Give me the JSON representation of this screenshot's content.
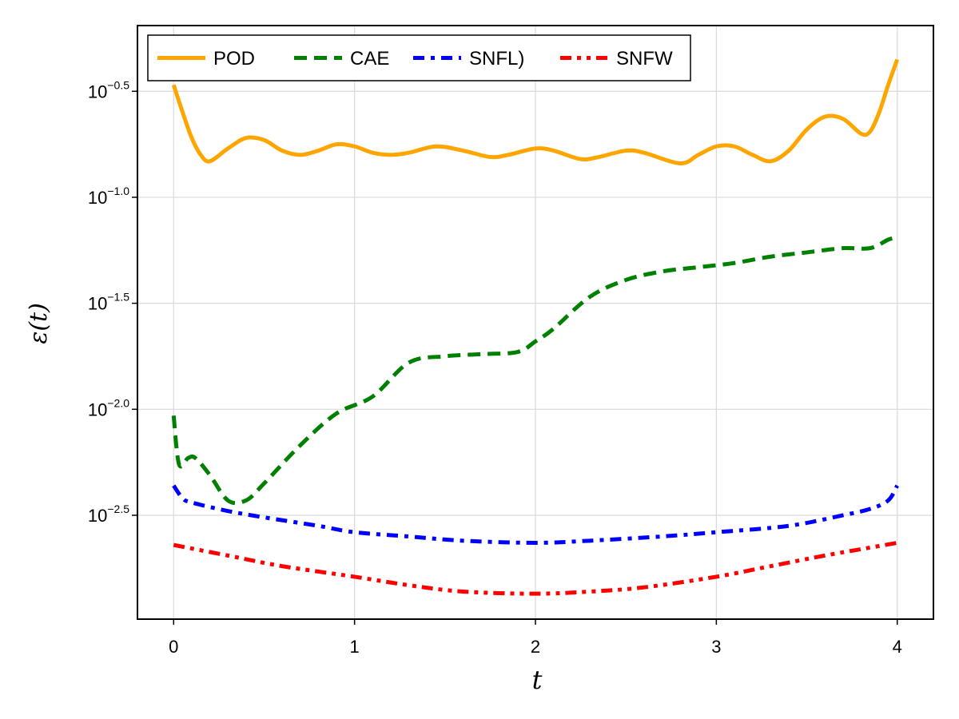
{
  "chart_data": {
    "type": "line",
    "xlabel": "t",
    "ylabel": "ε(t)",
    "yscale": "log10",
    "xlim": [
      -0.2,
      4.2
    ],
    "ylim_log10": [
      -2.99,
      -0.19
    ],
    "x_ticks": [
      0,
      1,
      2,
      3,
      4
    ],
    "x_tick_labels": [
      "0",
      "1",
      "2",
      "3",
      "4"
    ],
    "y_ticks_log10": [
      -2.5,
      -2.0,
      -1.5,
      -1.0,
      -0.5
    ],
    "y_tick_labels": [
      {
        "base": "10",
        "exp": "−2.5"
      },
      {
        "base": "10",
        "exp": "−2.0"
      },
      {
        "base": "10",
        "exp": "−1.5"
      },
      {
        "base": "10",
        "exp": "−1.0"
      },
      {
        "base": "10",
        "exp": "−0.5"
      }
    ],
    "grid": true,
    "legend_position": "top-left",
    "series": [
      {
        "name": "POD",
        "color": "#ffa500",
        "dash": "solid",
        "log10_values": [
          [
            0.0,
            -0.47
          ],
          [
            0.05,
            -0.6
          ],
          [
            0.1,
            -0.72
          ],
          [
            0.15,
            -0.8
          ],
          [
            0.2,
            -0.83
          ],
          [
            0.3,
            -0.77
          ],
          [
            0.4,
            -0.72
          ],
          [
            0.5,
            -0.73
          ],
          [
            0.6,
            -0.78
          ],
          [
            0.7,
            -0.8
          ],
          [
            0.8,
            -0.78
          ],
          [
            0.9,
            -0.75
          ],
          [
            1.0,
            -0.76
          ],
          [
            1.1,
            -0.79
          ],
          [
            1.2,
            -0.8
          ],
          [
            1.3,
            -0.79
          ],
          [
            1.45,
            -0.76
          ],
          [
            1.6,
            -0.78
          ],
          [
            1.75,
            -0.81
          ],
          [
            1.85,
            -0.8
          ],
          [
            2.0,
            -0.77
          ],
          [
            2.1,
            -0.78
          ],
          [
            2.25,
            -0.82
          ],
          [
            2.35,
            -0.81
          ],
          [
            2.5,
            -0.78
          ],
          [
            2.6,
            -0.79
          ],
          [
            2.8,
            -0.84
          ],
          [
            2.9,
            -0.8
          ],
          [
            3.0,
            -0.76
          ],
          [
            3.1,
            -0.76
          ],
          [
            3.2,
            -0.8
          ],
          [
            3.3,
            -0.83
          ],
          [
            3.4,
            -0.78
          ],
          [
            3.5,
            -0.68
          ],
          [
            3.6,
            -0.62
          ],
          [
            3.7,
            -0.63
          ],
          [
            3.8,
            -0.7
          ],
          [
            3.85,
            -0.69
          ],
          [
            3.9,
            -0.6
          ],
          [
            3.95,
            -0.47
          ],
          [
            4.0,
            -0.35
          ]
        ]
      },
      {
        "name": "CAE",
        "color": "#008000",
        "dash": "dashed",
        "log10_values": [
          [
            0.0,
            -2.03
          ],
          [
            0.03,
            -2.26
          ],
          [
            0.08,
            -2.23
          ],
          [
            0.12,
            -2.23
          ],
          [
            0.2,
            -2.31
          ],
          [
            0.3,
            -2.43
          ],
          [
            0.4,
            -2.43
          ],
          [
            0.5,
            -2.35
          ],
          [
            0.7,
            -2.17
          ],
          [
            0.9,
            -2.02
          ],
          [
            1.1,
            -1.94
          ],
          [
            1.3,
            -1.78
          ],
          [
            1.5,
            -1.75
          ],
          [
            1.7,
            -1.74
          ],
          [
            1.9,
            -1.73
          ],
          [
            2.0,
            -1.68
          ],
          [
            2.1,
            -1.62
          ],
          [
            2.3,
            -1.47
          ],
          [
            2.5,
            -1.39
          ],
          [
            2.7,
            -1.35
          ],
          [
            2.9,
            -1.33
          ],
          [
            3.1,
            -1.31
          ],
          [
            3.3,
            -1.28
          ],
          [
            3.5,
            -1.26
          ],
          [
            3.7,
            -1.24
          ],
          [
            3.85,
            -1.24
          ],
          [
            3.95,
            -1.2
          ],
          [
            4.0,
            -1.19
          ]
        ]
      },
      {
        "name": "SNFL)",
        "color": "#0000ff",
        "dash": "dashdot",
        "log10_values": [
          [
            0.0,
            -2.36
          ],
          [
            0.05,
            -2.42
          ],
          [
            0.1,
            -2.44
          ],
          [
            0.3,
            -2.48
          ],
          [
            0.5,
            -2.51
          ],
          [
            0.8,
            -2.55
          ],
          [
            1.0,
            -2.58
          ],
          [
            1.3,
            -2.6
          ],
          [
            1.6,
            -2.62
          ],
          [
            2.0,
            -2.63
          ],
          [
            2.3,
            -2.62
          ],
          [
            2.7,
            -2.6
          ],
          [
            3.0,
            -2.58
          ],
          [
            3.4,
            -2.55
          ],
          [
            3.7,
            -2.5
          ],
          [
            3.85,
            -2.47
          ],
          [
            3.95,
            -2.43
          ],
          [
            4.0,
            -2.36
          ]
        ]
      },
      {
        "name": "SNFW",
        "color": "#ff0000",
        "dash": "dashdotdot",
        "log10_values": [
          [
            0.0,
            -2.64
          ],
          [
            0.3,
            -2.69
          ],
          [
            0.6,
            -2.74
          ],
          [
            1.0,
            -2.79
          ],
          [
            1.3,
            -2.83
          ],
          [
            1.6,
            -2.86
          ],
          [
            2.0,
            -2.87
          ],
          [
            2.3,
            -2.86
          ],
          [
            2.6,
            -2.84
          ],
          [
            3.0,
            -2.79
          ],
          [
            3.3,
            -2.74
          ],
          [
            3.6,
            -2.69
          ],
          [
            3.8,
            -2.66
          ],
          [
            4.0,
            -2.63
          ]
        ]
      }
    ]
  }
}
